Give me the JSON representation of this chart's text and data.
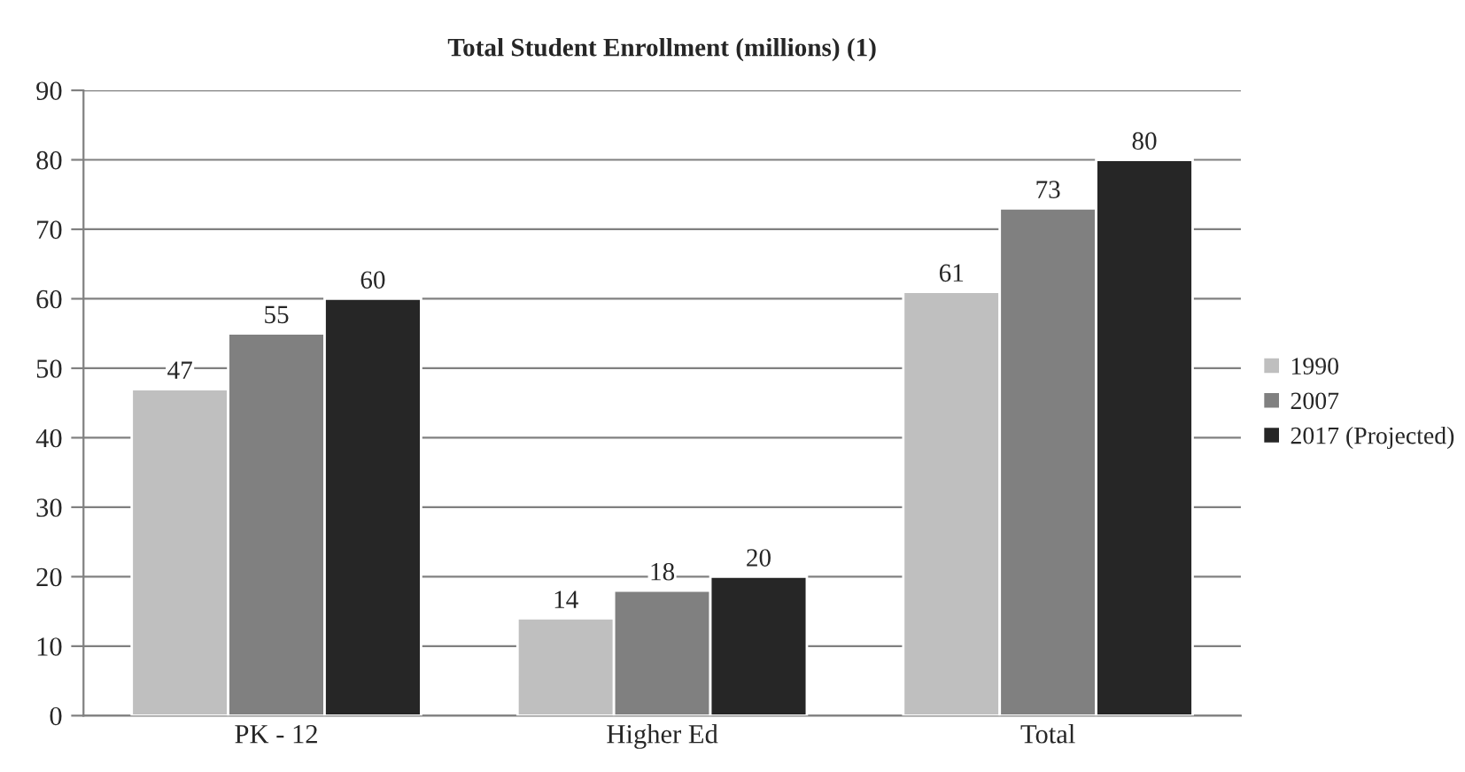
{
  "chart_data": {
    "type": "bar",
    "title": "Total Student Enrollment (millions) (1)",
    "categories": [
      "PK - 12",
      "Higher Ed",
      "Total"
    ],
    "series": [
      {
        "name": "1990",
        "color": "#bfbfbf",
        "values": [
          47,
          14,
          61
        ]
      },
      {
        "name": "2007",
        "color": "#808080",
        "values": [
          55,
          18,
          73
        ]
      },
      {
        "name": "2017 (Projected)",
        "color": "#262626",
        "values": [
          60,
          20,
          80
        ]
      }
    ],
    "ylim": [
      0,
      90
    ],
    "yticks": [
      0,
      10,
      20,
      30,
      40,
      50,
      60,
      70,
      80,
      90
    ],
    "grid": "y",
    "legend": "right",
    "data_labels": true
  }
}
